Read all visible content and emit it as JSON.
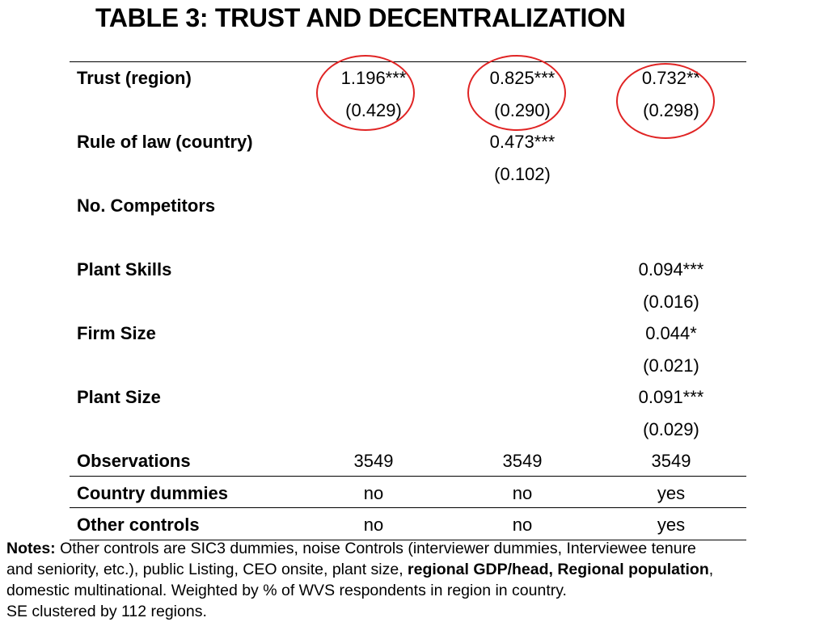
{
  "title": "TABLE 3: TRUST AND DECENTRALIZATION",
  "rows": [
    {
      "label": "Trust (region)",
      "c1": "1.196***",
      "c2": "0.825***",
      "c3": "0.732**"
    },
    {
      "label": "",
      "c1": "(0.429)",
      "c2": "(0.290)",
      "c3": "(0.298)"
    },
    {
      "label": "Rule of law (country)",
      "c1": "",
      "c2": "0.473***",
      "c3": ""
    },
    {
      "label": "",
      "c1": "",
      "c2": "(0.102)",
      "c3": ""
    },
    {
      "label": "No. Competitors",
      "c1": "",
      "c2": "",
      "c3": ""
    },
    {
      "label": "",
      "c1": "",
      "c2": "",
      "c3": ""
    },
    {
      "label": "Plant Skills",
      "c1": "",
      "c2": "",
      "c3": "0.094***"
    },
    {
      "label": "",
      "c1": "",
      "c2": "",
      "c3": "(0.016)"
    },
    {
      "label": "Firm Size",
      "c1": "",
      "c2": "",
      "c3": "0.044*"
    },
    {
      "label": "",
      "c1": "",
      "c2": "",
      "c3": "(0.021)"
    },
    {
      "label": "Plant Size",
      "c1": "",
      "c2": "",
      "c3": "0.091***"
    },
    {
      "label": "",
      "c1": "",
      "c2": "",
      "c3": "(0.029)"
    },
    {
      "label": "Observations",
      "c1": "3549",
      "c2": "3549",
      "c3": "3549"
    },
    {
      "label": "Country dummies",
      "c1": "no",
      "c2": "no",
      "c3": "yes"
    },
    {
      "label": "Other controls",
      "c1": "no",
      "c2": "no",
      "c3": "yes"
    }
  ],
  "notes": {
    "label": "Notes:",
    "line1": " Other controls are SIC3 dummies, noise Controls (interviewer dummies, Interviewee tenure",
    "line2_prefix": "and seniority, etc.), public Listing, CEO onsite, plant size, ",
    "line2_bold": "regional GDP/head, Regional population",
    "line2_suffix": ",",
    "line3": " domestic multinational. Weighted by % of WVS respondents in region in country.",
    "line4": "SE clustered by 112 regions."
  },
  "highlight_color": "#e02424"
}
